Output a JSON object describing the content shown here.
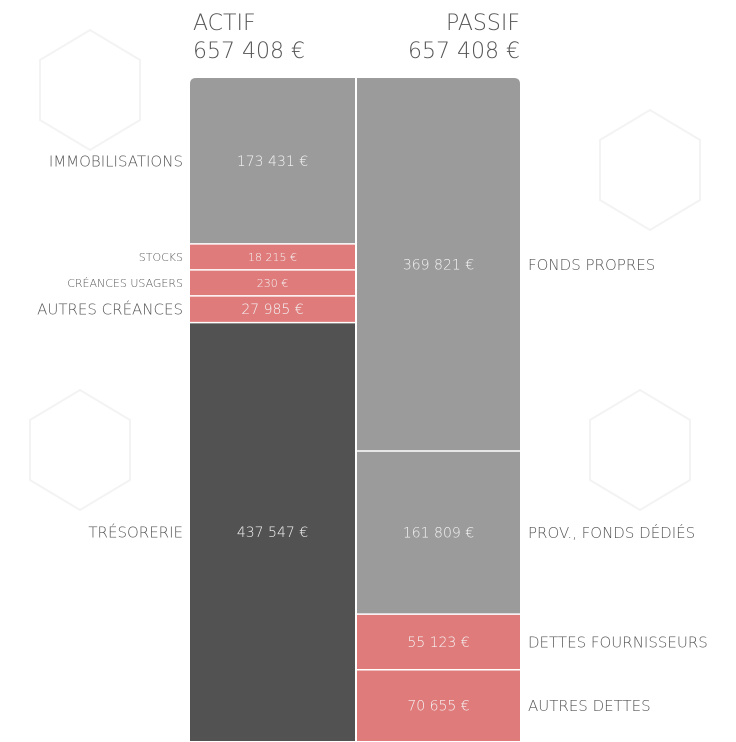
{
  "chart_data": {
    "type": "balance_columns",
    "columns": [
      {
        "name": "ACTIF",
        "total": 657408,
        "total_label": "657 408 €",
        "segments": [
          {
            "name": "IMMOBILISATIONS",
            "value": 173431,
            "value_label": "173 431 €",
            "color": "#9b9b9b"
          },
          {
            "name": "STOCKS",
            "value": 18215,
            "value_label": "18 215 €",
            "color": "#e07b7b"
          },
          {
            "name": "CRÉANCES USAGERS",
            "value": 230,
            "value_label": "230 €",
            "color": "#e07b7b"
          },
          {
            "name": "AUTRES CRÉANCES",
            "value": 27985,
            "value_label": "27 985 €",
            "color": "#e07b7b"
          },
          {
            "name": "TRÉSORERIE",
            "value": 437547,
            "value_label": "437 547 €",
            "color": "#525252"
          }
        ]
      },
      {
        "name": "PASSIF",
        "total": 657408,
        "total_label": "657 408 €",
        "segments": [
          {
            "name": "FONDS PROPRES",
            "value": 369821,
            "value_label": "369 821 €",
            "color": "#9b9b9b"
          },
          {
            "name": "PROV., FONDS DÉDIÉS",
            "value": 161809,
            "value_label": "161 809 €",
            "color": "#9b9b9b"
          },
          {
            "name": "DETTES FOURNISSEURS",
            "value": 55123,
            "value_label": "55 123 €",
            "color": "#e07b7b"
          },
          {
            "name": "AUTRES DETTES",
            "value": 70655,
            "value_label": "70 655 €",
            "color": "#e07b7b"
          }
        ]
      }
    ]
  }
}
